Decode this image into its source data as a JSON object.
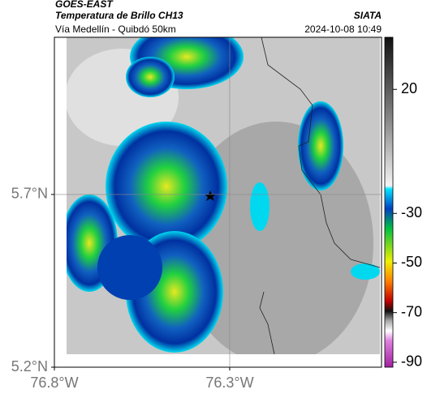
{
  "header": {
    "satellite": "GOES-EAST",
    "product": "Temperatura de Brillo CH13",
    "source": "SIATA",
    "route": "Vía Medellín - Quibdó 50km",
    "datetime": "2024-10-08 10:49"
  },
  "map": {
    "lonlim": [
      -76.8,
      -75.867
    ],
    "latlim": [
      5.2,
      6.155
    ],
    "xticks": [
      {
        "value": -76.8,
        "label": "76.8°W"
      },
      {
        "value": -76.3,
        "label": "76.3°W"
      }
    ],
    "yticks": [
      {
        "value": 5.2,
        "label": "5.2°N"
      },
      {
        "value": 5.7,
        "label": "5.7°N"
      }
    ]
  },
  "colorbar": {
    "lim": [
      -92,
      41
    ],
    "ticks": [
      20,
      -30,
      -50,
      -70,
      -90
    ]
  }
}
